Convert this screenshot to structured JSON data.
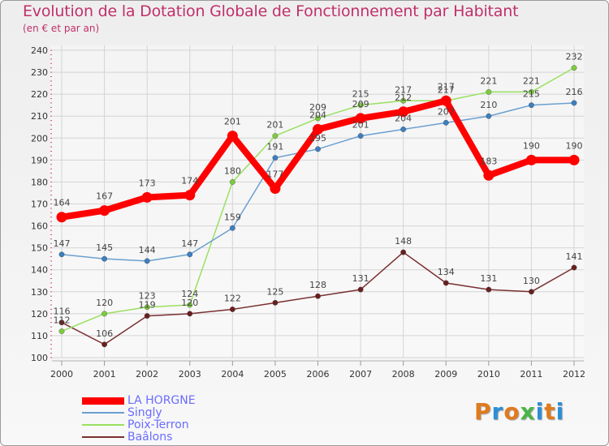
{
  "title": "Evolution de la Dotation Globale de Fonctionnement par Habitant",
  "subtitle": "(en € et par an)",
  "logo": {
    "text": "Proxiti",
    "colors": [
      "#e07a1e",
      "#2a8fd6",
      "#e07a1e",
      "#4ab548",
      "#2a8fd6",
      "#e07a1e",
      "#2a8fd6"
    ]
  },
  "chart_data": {
    "type": "line",
    "title": "Evolution de la Dotation Globale de Fonctionnement par Habitant",
    "subtitle": "(en € et par an)",
    "xlabel": "",
    "ylabel": "",
    "x": [
      "2000",
      "2001",
      "2002",
      "2003",
      "2004",
      "2005",
      "2006",
      "2007",
      "2008",
      "2009",
      "2010",
      "2011",
      "2012"
    ],
    "ylim": [
      100,
      240
    ],
    "yticks": [
      100,
      110,
      120,
      130,
      140,
      150,
      160,
      170,
      180,
      190,
      200,
      210,
      220,
      230,
      240
    ],
    "grid": true,
    "legend_position": "bottom-left",
    "series": [
      {
        "name": "LA HORGNE",
        "values": [
          164,
          167,
          173,
          174,
          201,
          177,
          204,
          209,
          212,
          217,
          183,
          190,
          190
        ],
        "color": "#ff0000",
        "line_color": "#ff0000",
        "marker_color": "#ff0000",
        "width": 8
      },
      {
        "name": "Singly",
        "values": [
          147,
          145,
          144,
          147,
          159,
          191,
          195,
          201,
          204,
          207,
          210,
          215,
          216
        ],
        "color": "#6aa0d0",
        "line_color": "#6aa0d0",
        "marker_color": "#3d7fc0",
        "width": 1.5
      },
      {
        "name": "Poix-Terron",
        "values": [
          112,
          120,
          123,
          124,
          180,
          201,
          209,
          215,
          217,
          217,
          221,
          221,
          232
        ],
        "color": "#99e060",
        "line_color": "#99e060",
        "marker_color": "#7ccd3c",
        "width": 1.5
      },
      {
        "name": "Baâlons",
        "values": [
          116,
          106,
          119,
          120,
          122,
          125,
          128,
          131,
          148,
          134,
          131,
          130,
          141
        ],
        "color": "#7a3030",
        "line_color": "#7a3030",
        "marker_color": "#6a1f1f",
        "width": 1.5
      }
    ]
  }
}
